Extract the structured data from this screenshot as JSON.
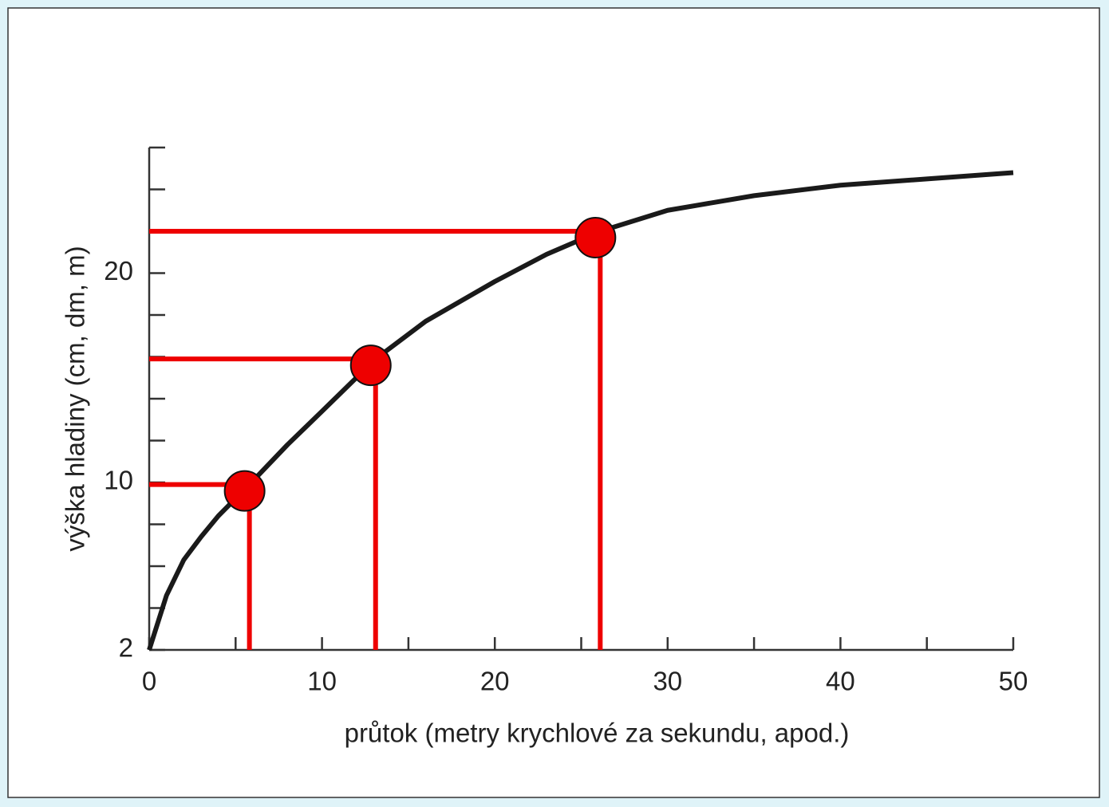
{
  "chart_data": {
    "type": "line",
    "x_label": "průtok (metry krychlové za sekundu, apod.)",
    "y_label": "výška hladiny (cm, dm, m)",
    "x": [
      0,
      1,
      2,
      3,
      4,
      5.8,
      8,
      10,
      13.1,
      16,
      20,
      23,
      26.1,
      30,
      35,
      40,
      45,
      50
    ],
    "values": [
      2,
      4.6,
      6.3,
      7.4,
      8.4,
      9.9,
      11.8,
      13.4,
      15.9,
      17.7,
      19.6,
      20.9,
      22.0,
      23.0,
      23.7,
      24.2,
      24.5,
      24.8
    ],
    "color": "#1a1a1a",
    "points": {
      "x": [
        5.8,
        13.1,
        26.1
      ],
      "values": [
        9.9,
        15.9,
        22.0
      ],
      "color": "#ee0000"
    },
    "xlim": [
      0,
      50
    ],
    "xticks": [
      0,
      10,
      20,
      30,
      40,
      50
    ],
    "x_minor_ticks": [
      5,
      15,
      25,
      35,
      45
    ],
    "ylim": [
      2,
      26
    ],
    "yticks": [
      2,
      10,
      20
    ],
    "y_minor_ticks": [
      4,
      6,
      8,
      12,
      14,
      16,
      18,
      22,
      24,
      26
    ]
  }
}
